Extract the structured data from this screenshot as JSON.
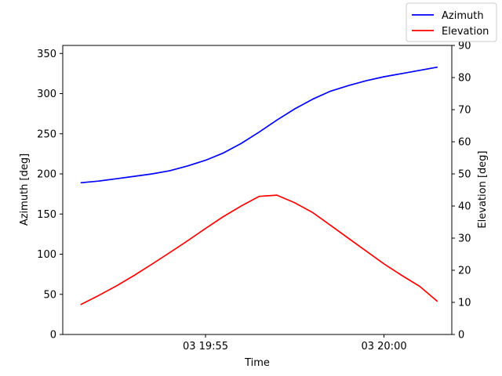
{
  "chart_data": {
    "type": "line",
    "xlabel": "Time",
    "ylabel_left": "Azimuth [deg]",
    "ylabel_right": "Elevation [deg]",
    "x_unit": "minutes",
    "xlim": [
      51.0,
      61.9
    ],
    "x_ticks": [
      {
        "value": 55,
        "label": "03 19:55"
      },
      {
        "value": 60,
        "label": "03 20:00"
      }
    ],
    "ylim_left": [
      0,
      360
    ],
    "yticks_left": [
      0,
      50,
      100,
      150,
      200,
      250,
      300,
      350
    ],
    "ylim_right": [
      0,
      90
    ],
    "yticks_right": [
      0,
      10,
      20,
      30,
      40,
      50,
      60,
      70,
      80,
      90
    ],
    "legend": {
      "placement": "top-right"
    },
    "grid": false,
    "series": [
      {
        "name": "Azimuth",
        "axis": "left",
        "color": "#0000ff",
        "x": [
          51.5,
          52.0,
          52.5,
          53.0,
          53.5,
          54.0,
          54.5,
          55.0,
          55.5,
          56.0,
          56.5,
          57.0,
          57.5,
          58.0,
          58.5,
          59.0,
          59.5,
          60.0,
          60.5,
          61.0,
          61.5
        ],
        "values": [
          189,
          191,
          194,
          197,
          200,
          204,
          210,
          217,
          226,
          238,
          252,
          267,
          281,
          293,
          303,
          310,
          316,
          321,
          325,
          329,
          333
        ]
      },
      {
        "name": "Elevation",
        "axis": "right",
        "color": "#ff0000",
        "x": [
          51.5,
          52.0,
          52.5,
          53.0,
          53.5,
          54.0,
          54.5,
          55.0,
          55.5,
          56.0,
          56.5,
          57.0,
          57.5,
          58.0,
          58.5,
          59.0,
          59.5,
          60.0,
          60.5,
          61.0,
          61.5
        ],
        "values": [
          9.3,
          12.1,
          15.1,
          18.4,
          21.9,
          25.5,
          29.2,
          33.0,
          36.7,
          40.0,
          43.0,
          43.4,
          41.0,
          38.0,
          34.0,
          30.0,
          26.0,
          22.0,
          18.4,
          15.0,
          10.3
        ]
      }
    ]
  }
}
